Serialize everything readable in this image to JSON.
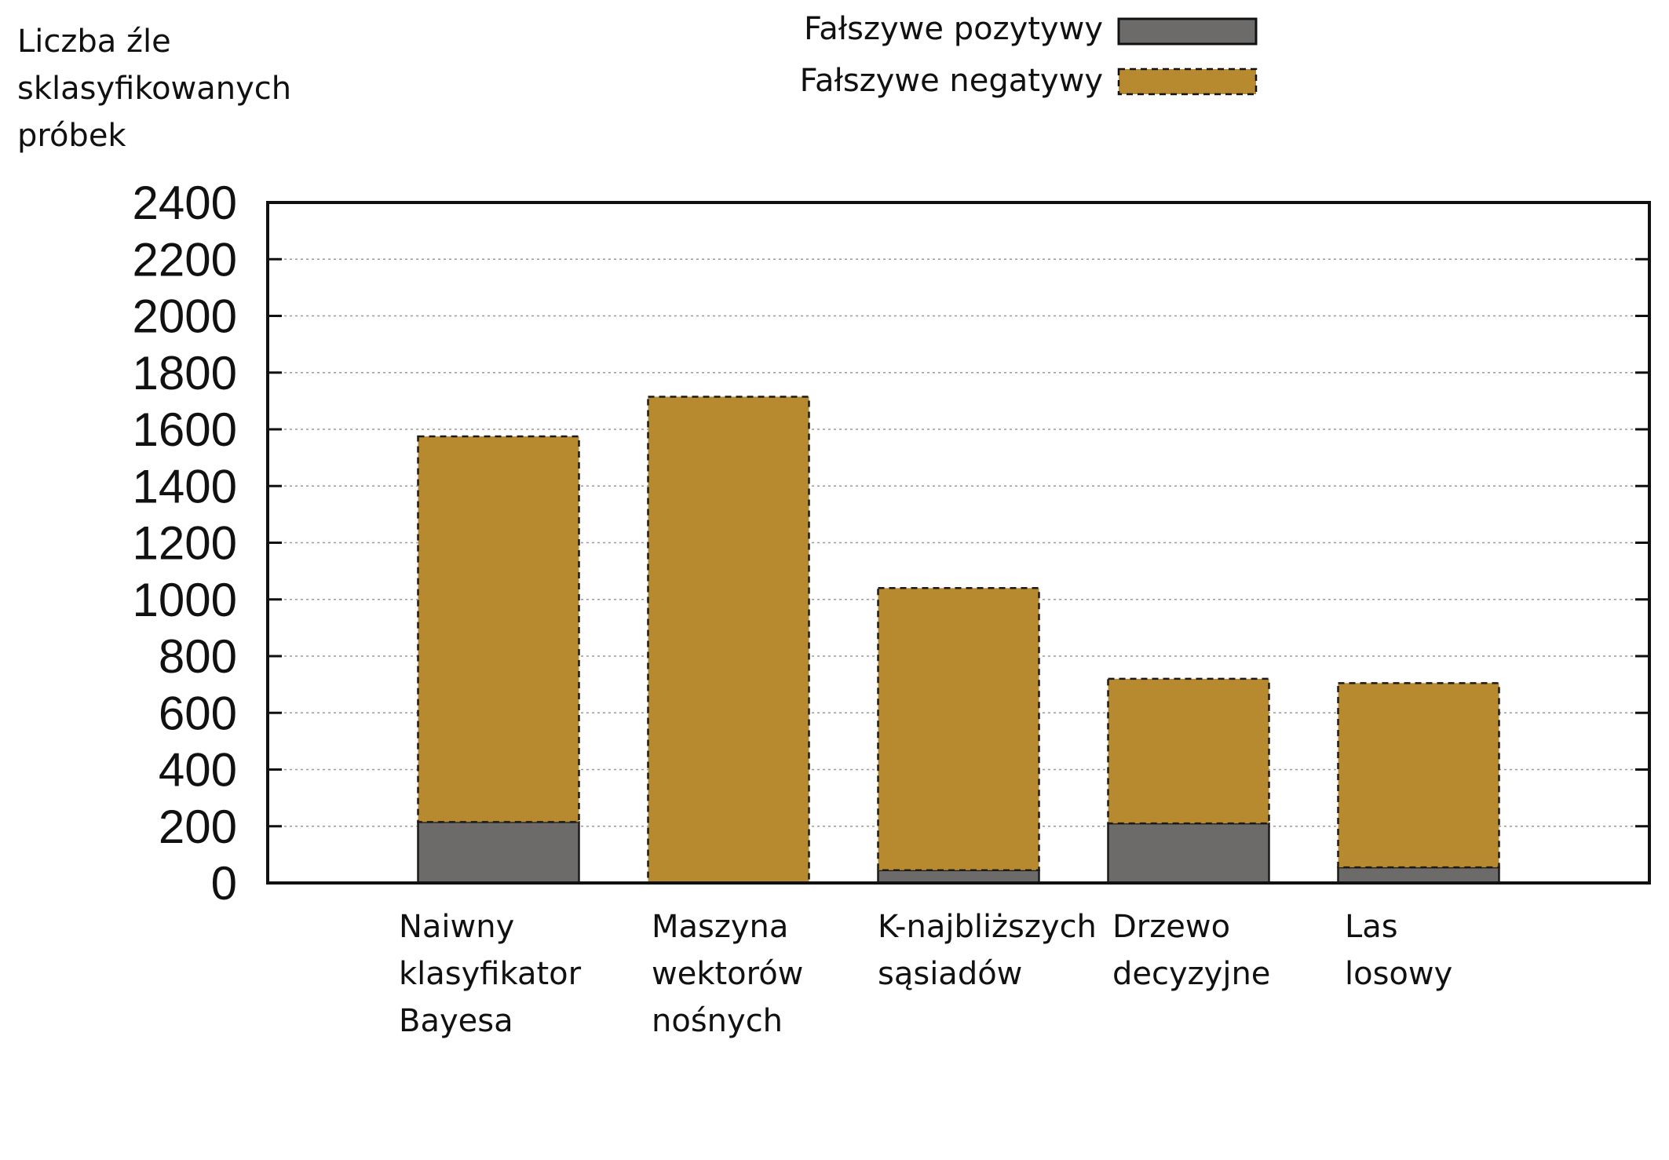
{
  "chart_data": {
    "type": "bar",
    "stacked": true,
    "ylabel_lines": [
      "Liczba źle",
      "sklasyfikowanych",
      "próbek"
    ],
    "categories": [
      [
        "Naiwny",
        "klasyfikator",
        "Bayesa"
      ],
      [
        "Maszyna",
        "wektorów",
        "nośnych"
      ],
      [
        "K-najbliższych",
        "sąsiadów"
      ],
      [
        "Drzewo",
        "decyzyjne"
      ],
      [
        "Las",
        "losowy"
      ]
    ],
    "series": [
      {
        "name": "Fałszywe pozytywy",
        "values": [
          215,
          0,
          45,
          210,
          55
        ],
        "color": "#6d6b69",
        "border": "solid"
      },
      {
        "name": "Fałszywe negatywy",
        "values": [
          1360,
          1715,
          995,
          510,
          650
        ],
        "color": "#b88a2f",
        "border": "dashed"
      }
    ],
    "ylim": [
      0,
      2400
    ],
    "yticks": [
      0,
      200,
      400,
      600,
      800,
      1000,
      1200,
      1400,
      1600,
      1800,
      2000,
      2200,
      2400
    ],
    "grid": "horizontal-dotted",
    "legend": "top-center"
  }
}
